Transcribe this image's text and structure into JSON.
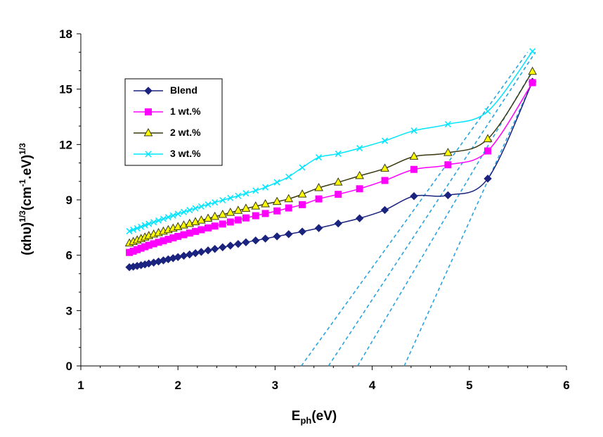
{
  "chart_data": {
    "type": "line",
    "xlabel": {
      "main": "E",
      "sub": "ph",
      "rest": "(eV)"
    },
    "ylabel": {
      "part1": "(αhυ)",
      "sup1": "1/3",
      "part2": "(cm",
      "sup2": "-1",
      "part3": ".eV)",
      "sup3": "1/3"
    },
    "xlim": [
      1,
      6
    ],
    "ylim": [
      0,
      18
    ],
    "xticks": [
      1,
      2,
      3,
      4,
      5,
      6
    ],
    "yticks": [
      0,
      3,
      6,
      9,
      12,
      15,
      18
    ],
    "grid": false,
    "legend_position": "upper-left",
    "series": [
      {
        "name": "Blend",
        "color": "#1a237e",
        "marker": "diamond",
        "x": [
          1.5,
          1.54,
          1.58,
          1.62,
          1.66,
          1.7,
          1.75,
          1.8,
          1.85,
          1.9,
          1.95,
          2.0,
          2.06,
          2.12,
          2.18,
          2.24,
          2.31,
          2.38,
          2.46,
          2.54,
          2.62,
          2.7,
          2.8,
          2.9,
          3.02,
          3.14,
          3.28,
          3.45,
          3.65,
          3.87,
          4.13,
          4.43,
          4.78,
          5.19,
          5.65
        ],
        "y": [
          5.35,
          5.38,
          5.42,
          5.46,
          5.5,
          5.55,
          5.6,
          5.66,
          5.72,
          5.78,
          5.84,
          5.9,
          5.97,
          6.04,
          6.11,
          6.18,
          6.26,
          6.34,
          6.43,
          6.52,
          6.61,
          6.7,
          6.8,
          6.9,
          7.02,
          7.14,
          7.28,
          7.47,
          7.72,
          8.0,
          8.45,
          9.2,
          9.25,
          10.15,
          15.4
        ]
      },
      {
        "name": "1 wt.%",
        "color": "#ff00ff",
        "marker": "square",
        "x": [
          1.5,
          1.54,
          1.58,
          1.62,
          1.66,
          1.7,
          1.75,
          1.8,
          1.85,
          1.9,
          1.95,
          2.0,
          2.06,
          2.12,
          2.18,
          2.24,
          2.31,
          2.38,
          2.46,
          2.54,
          2.62,
          2.7,
          2.8,
          2.9,
          3.02,
          3.14,
          3.28,
          3.45,
          3.65,
          3.87,
          4.13,
          4.43,
          4.78,
          5.19,
          5.65
        ],
        "y": [
          6.15,
          6.22,
          6.3,
          6.38,
          6.46,
          6.54,
          6.62,
          6.7,
          6.78,
          6.86,
          6.94,
          7.02,
          7.11,
          7.2,
          7.29,
          7.38,
          7.48,
          7.58,
          7.69,
          7.8,
          7.91,
          8.02,
          8.14,
          8.26,
          8.4,
          8.56,
          8.74,
          9.05,
          9.3,
          9.6,
          10.05,
          10.65,
          10.9,
          11.65,
          15.35
        ]
      },
      {
        "name": "2 wt.%",
        "color": "#3a3a10",
        "marker": "triangle",
        "x": [
          1.5,
          1.54,
          1.58,
          1.62,
          1.66,
          1.7,
          1.75,
          1.8,
          1.85,
          1.9,
          1.95,
          2.0,
          2.06,
          2.12,
          2.18,
          2.24,
          2.31,
          2.38,
          2.46,
          2.54,
          2.62,
          2.7,
          2.8,
          2.9,
          3.02,
          3.14,
          3.28,
          3.45,
          3.65,
          3.87,
          4.13,
          4.43,
          4.78,
          5.19,
          5.65
        ],
        "y": [
          6.65,
          6.73,
          6.81,
          6.89,
          6.97,
          7.05,
          7.13,
          7.21,
          7.29,
          7.37,
          7.45,
          7.53,
          7.62,
          7.71,
          7.8,
          7.89,
          7.99,
          8.09,
          8.2,
          8.31,
          8.42,
          8.53,
          8.65,
          8.77,
          8.9,
          9.05,
          9.3,
          9.65,
          9.95,
          10.3,
          10.7,
          11.35,
          11.55,
          12.3,
          15.95
        ]
      },
      {
        "name": "3 wt.%",
        "color": "#00e5ff",
        "marker": "x",
        "x": [
          1.5,
          1.54,
          1.58,
          1.62,
          1.66,
          1.7,
          1.75,
          1.8,
          1.85,
          1.9,
          1.95,
          2.0,
          2.06,
          2.12,
          2.18,
          2.24,
          2.31,
          2.38,
          2.46,
          2.54,
          2.62,
          2.7,
          2.8,
          2.9,
          3.02,
          3.14,
          3.28,
          3.45,
          3.65,
          3.87,
          4.13,
          4.43,
          4.78,
          5.19,
          5.65
        ],
        "y": [
          7.3,
          7.38,
          7.46,
          7.54,
          7.62,
          7.7,
          7.79,
          7.88,
          7.97,
          8.06,
          8.15,
          8.24,
          8.34,
          8.44,
          8.54,
          8.64,
          8.75,
          8.86,
          8.98,
          9.1,
          9.22,
          9.35,
          9.5,
          9.68,
          9.95,
          10.25,
          10.75,
          11.3,
          11.5,
          11.8,
          12.2,
          12.75,
          13.1,
          13.8,
          17.05
        ]
      }
    ],
    "tangent_lines": [
      {
        "color": "#29a3e0",
        "x1": 3.27,
        "y1": 0,
        "x2": 5.6,
        "y2": 17.0
      },
      {
        "color": "#29a3e0",
        "x1": 3.55,
        "y1": 0,
        "x2": 5.68,
        "y2": 17.0
      },
      {
        "color": "#29a3e0",
        "x1": 3.85,
        "y1": 0,
        "x2": 5.65,
        "y2": 16.0
      },
      {
        "color": "#29a3e0",
        "x1": 4.33,
        "y1": 0,
        "x2": 5.65,
        "y2": 15.4
      }
    ]
  }
}
